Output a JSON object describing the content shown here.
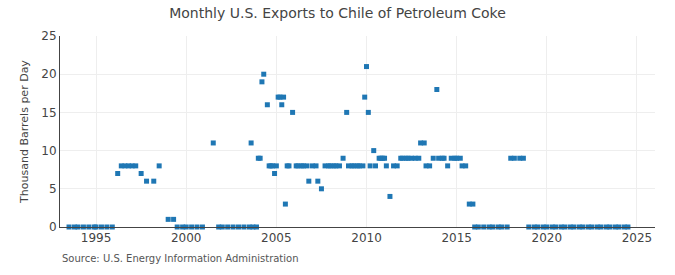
{
  "chart_data": {
    "type": "scatter",
    "title": "Monthly U.S. Exports to Chile of Petroleum Coke",
    "ylabel": "Thousand Barrels per Day",
    "annotations": [
      "Source: U.S. Energy Information Administration"
    ],
    "marker": "square",
    "grid": true,
    "xlim": [
      1993.0,
      2026.0
    ],
    "ylim": [
      0,
      25
    ],
    "xticks": [
      1995,
      2000,
      2005,
      2010,
      2015,
      2020,
      2025
    ],
    "yticks": [
      0,
      5,
      10,
      15,
      20,
      25
    ],
    "x": [
      1993.5,
      1993.8,
      1994.0,
      1994.3,
      1994.6,
      1994.9,
      1995.0,
      1995.3,
      1995.6,
      1995.9,
      1996.2,
      1996.4,
      1996.6,
      1996.8,
      1997.0,
      1997.2,
      1997.5,
      1997.8,
      1998.2,
      1998.5,
      1999.0,
      1999.3,
      1999.5,
      1999.8,
      2000.0,
      2000.3,
      2000.6,
      2000.9,
      2001.5,
      2001.8,
      2002.0,
      2002.3,
      2002.6,
      2002.9,
      2003.2,
      2003.5,
      2003.6,
      2003.7,
      2003.9,
      2004.0,
      2004.1,
      2004.2,
      2004.3,
      2004.5,
      2004.6,
      2004.7,
      2004.8,
      2004.9,
      2005.0,
      2005.1,
      2005.2,
      2005.3,
      2005.4,
      2005.5,
      2005.6,
      2005.7,
      2005.9,
      2006.1,
      2006.2,
      2006.4,
      2006.5,
      2006.7,
      2006.8,
      2007.0,
      2007.2,
      2007.3,
      2007.5,
      2007.7,
      2007.9,
      2008.0,
      2008.2,
      2008.3,
      2008.5,
      2008.7,
      2008.9,
      2009.0,
      2009.2,
      2009.3,
      2009.5,
      2009.6,
      2009.8,
      2009.9,
      2010.0,
      2010.1,
      2010.2,
      2010.4,
      2010.5,
      2010.7,
      2010.8,
      2010.9,
      2011.0,
      2011.1,
      2011.3,
      2011.5,
      2011.7,
      2011.9,
      2012.0,
      2012.2,
      2012.3,
      2012.5,
      2012.7,
      2012.9,
      2013.0,
      2013.2,
      2013.3,
      2013.5,
      2013.7,
      2013.9,
      2014.0,
      2014.2,
      2014.3,
      2014.5,
      2014.7,
      2014.9,
      2015.0,
      2015.2,
      2015.3,
      2015.5,
      2015.7,
      2015.9,
      2016.0,
      2016.2,
      2016.5,
      2016.8,
      2017.0,
      2017.3,
      2017.5,
      2017.8,
      2018.0,
      2018.2,
      2018.5,
      2018.7,
      2019.0,
      2019.3,
      2019.5,
      2019.8,
      2020.0,
      2020.3,
      2020.5,
      2020.8,
      2021.0,
      2021.3,
      2021.5,
      2021.8,
      2022.0,
      2022.3,
      2022.5,
      2022.8,
      2023.0,
      2023.3,
      2023.5,
      2023.8,
      2024.0,
      2024.3,
      2024.5
    ],
    "values": [
      0,
      0,
      0,
      0,
      0,
      0,
      0,
      0,
      0,
      0,
      7,
      8,
      8,
      8,
      8,
      8,
      7,
      6,
      6,
      8,
      1,
      1,
      0,
      0,
      0,
      0,
      0,
      0,
      11,
      0,
      0,
      0,
      0,
      0,
      0,
      0,
      11,
      0,
      0,
      9,
      9,
      19,
      20,
      16,
      8,
      8,
      8,
      7,
      8,
      17,
      17,
      16,
      17,
      3,
      8,
      8,
      15,
      8,
      8,
      8,
      8,
      8,
      6,
      8,
      8,
      6,
      5,
      8,
      8,
      8,
      8,
      8,
      8,
      9,
      15,
      8,
      8,
      8,
      8,
      8,
      8,
      17,
      21,
      15,
      8,
      10,
      8,
      9,
      9,
      9,
      9,
      8,
      4,
      8,
      8,
      9,
      9,
      9,
      9,
      9,
      9,
      9,
      11,
      11,
      8,
      8,
      9,
      18,
      9,
      9,
      9,
      8,
      9,
      9,
      9,
      9,
      8,
      8,
      3,
      3,
      0,
      0,
      0,
      0,
      0,
      0,
      0,
      0,
      9,
      9,
      9,
      9,
      0,
      0,
      0,
      0,
      0,
      0,
      0,
      0,
      0,
      0,
      0,
      0,
      0,
      0,
      0,
      0,
      0,
      0,
      0,
      0,
      0,
      0,
      0
    ]
  }
}
